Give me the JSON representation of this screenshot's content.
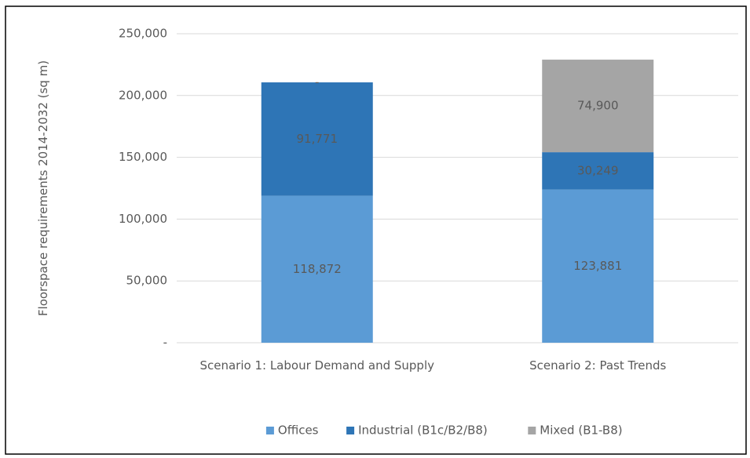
{
  "chart_data": {
    "type": "stacked_bar",
    "y_label": "Floorspace requirements 2014-2032 (sq m)",
    "categories": [
      "Scenario 1: Labour Demand and Supply",
      "Scenario 2: Past Trends"
    ],
    "series": [
      {
        "name": "Offices",
        "color": "#5b9bd5",
        "values": [
          118872,
          123881
        ],
        "value_labels": [
          "118,872",
          "123,881"
        ]
      },
      {
        "name": "Industrial (B1c/B2/B8)",
        "color": "#2e75b6",
        "values": [
          91771,
          30249
        ],
        "value_labels": [
          "91,771",
          "30,249"
        ]
      },
      {
        "name": "Mixed (B1-B8)",
        "color": "#a5a5a5",
        "values": [
          0,
          74900
        ],
        "value_labels": [
          "-",
          "74,900"
        ]
      }
    ],
    "ylim": [
      0,
      250000
    ],
    "yticks": [
      {
        "value": 0,
        "label": "-"
      },
      {
        "value": 50000,
        "label": "50,000"
      },
      {
        "value": 100000,
        "label": "100,000"
      },
      {
        "value": 150000,
        "label": "150,000"
      },
      {
        "value": 200000,
        "label": "200,000"
      },
      {
        "value": 250000,
        "label": "250,000"
      }
    ],
    "grid": true,
    "legend": "bottom"
  }
}
